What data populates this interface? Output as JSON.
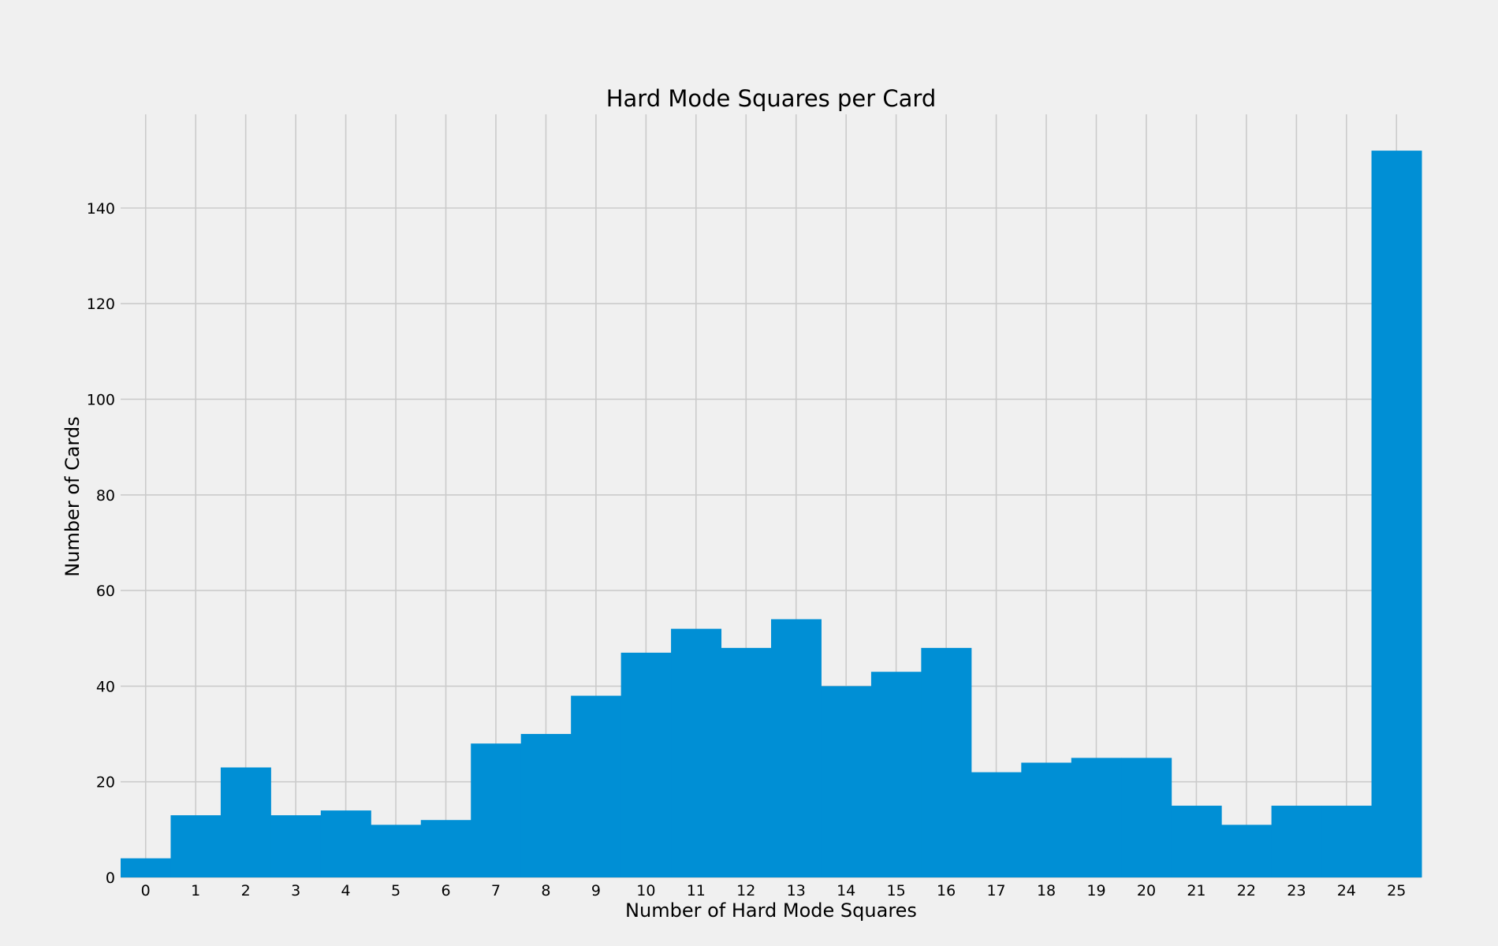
{
  "chart_data": {
    "type": "bar",
    "title": "Hard Mode Squares per Card",
    "xlabel": "Number of Hard Mode Squares",
    "ylabel": "Number of Cards",
    "categories": [
      "0",
      "1",
      "2",
      "3",
      "4",
      "5",
      "6",
      "7",
      "8",
      "9",
      "10",
      "11",
      "12",
      "13",
      "14",
      "15",
      "16",
      "17",
      "18",
      "19",
      "20",
      "21",
      "22",
      "23",
      "24",
      "25"
    ],
    "values": [
      4,
      13,
      23,
      13,
      14,
      11,
      12,
      28,
      30,
      38,
      47,
      52,
      48,
      54,
      40,
      43,
      48,
      22,
      24,
      25,
      25,
      15,
      11,
      15,
      15,
      152
    ],
    "xlim": [
      -0.5,
      25.5
    ],
    "ylim": [
      0,
      159.6
    ],
    "yticks": [
      "0",
      "20",
      "40",
      "60",
      "80",
      "100",
      "120",
      "140"
    ],
    "grid": true,
    "colors": {
      "bar": "#008fd5",
      "background": "#f0f0f0",
      "grid": "#cbcbcb"
    }
  }
}
